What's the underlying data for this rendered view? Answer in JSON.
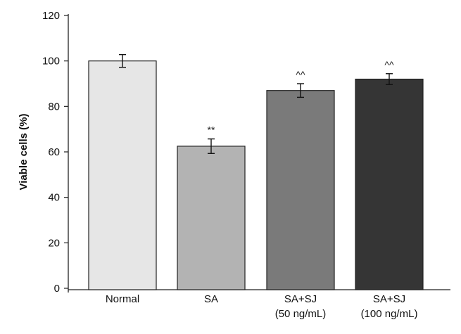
{
  "chart_data": {
    "type": "bar",
    "title": "",
    "xlabel": "",
    "ylabel": "Viable cells (%)",
    "ylim": [
      0,
      120
    ],
    "yticks": [
      0,
      20,
      40,
      60,
      80,
      100,
      120
    ],
    "grid": false,
    "categories": [
      {
        "line1": "Normal",
        "line2": ""
      },
      {
        "line1": "SA",
        "line2": ""
      },
      {
        "line1": "SA+SJ",
        "line2": "(50 ng/mL)"
      },
      {
        "line1": "SA+SJ",
        "line2": "(100 ng/mL)"
      }
    ],
    "values": [
      100,
      62.5,
      87,
      92
    ],
    "errors": [
      2.8,
      3.2,
      3.0,
      2.4
    ],
    "annotations": [
      "",
      "**",
      "^^",
      "^^"
    ],
    "colors": [
      "#e6e6e6",
      "#b3b3b3",
      "#7a7a7a",
      "#353535"
    ]
  }
}
